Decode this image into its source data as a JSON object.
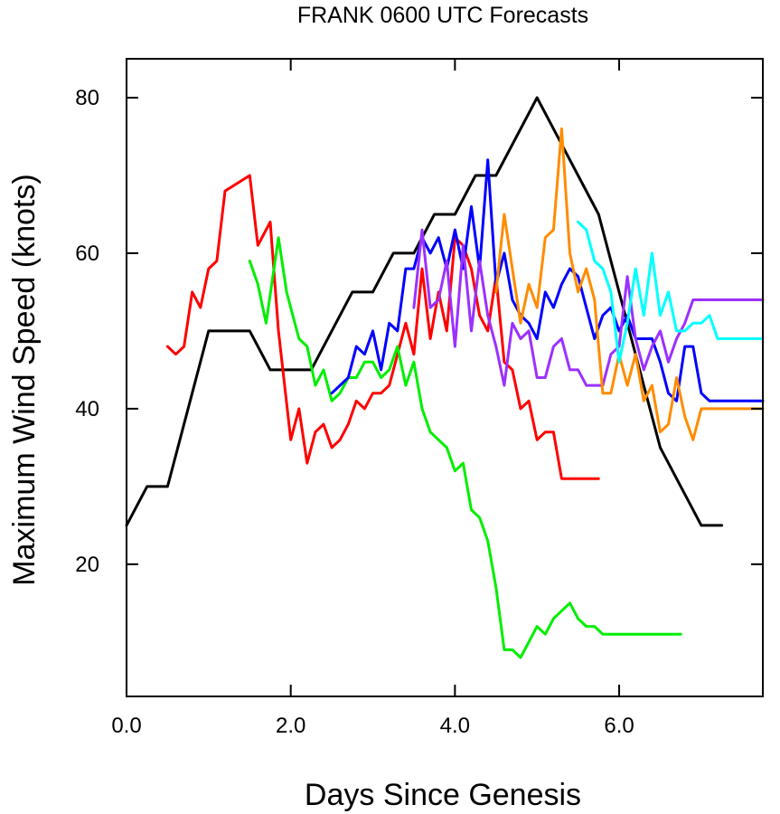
{
  "chart_data": {
    "type": "line",
    "title": "FRANK 0600 UTC Forecasts",
    "xlabel": "Days Since Genesis",
    "ylabel": "Maximum Wind Speed (knots)",
    "xlim": [
      0,
      7.75
    ],
    "ylim": [
      3,
      85
    ],
    "xticks": [
      0,
      2,
      4,
      6
    ],
    "xtick_labels": [
      "0.0",
      "2.0",
      "4.0",
      "6.0"
    ],
    "yticks": [
      20,
      40,
      60,
      80
    ],
    "ytick_labels": [
      "20",
      "40",
      "60",
      "80"
    ],
    "grid": false,
    "series": [
      {
        "color": "#000000",
        "x": [
          0,
          0.25,
          0.5,
          1.0,
          1.5,
          1.75,
          2.25,
          2.75,
          3.0,
          3.25,
          3.5,
          3.75,
          4.0,
          4.25,
          4.5,
          5.0,
          5.5,
          5.75,
          6.0,
          6.25,
          6.5,
          6.75,
          7.0,
          7.25
        ],
        "y": [
          25,
          30,
          30,
          50,
          50,
          45,
          45,
          55,
          55,
          60,
          60,
          65,
          65,
          70,
          70,
          80,
          70,
          65,
          55,
          45,
          35,
          30,
          25,
          25
        ]
      },
      {
        "color": "#ff0000",
        "x": [
          0.5,
          0.6,
          0.7,
          0.8,
          0.9,
          1.0,
          1.1,
          1.2,
          1.35,
          1.5,
          1.6,
          1.75,
          1.85,
          2.0,
          2.1,
          2.2,
          2.3,
          2.4,
          2.5,
          2.6,
          2.7,
          2.8,
          2.9,
          3.0,
          3.1,
          3.2,
          3.3,
          3.4,
          3.5,
          3.6,
          3.7,
          3.8,
          3.9,
          4.0,
          4.1,
          4.2,
          4.3,
          4.4,
          4.5,
          4.6,
          4.7,
          4.8,
          4.9,
          5.0,
          5.1,
          5.2,
          5.3,
          5.4,
          5.5,
          5.6,
          5.7,
          5.75
        ],
        "y": [
          48,
          47,
          48,
          55,
          53,
          58,
          59,
          68,
          69,
          70,
          61,
          64,
          50,
          36,
          40,
          33,
          37,
          38,
          35,
          36,
          38,
          41,
          40,
          42,
          42,
          43,
          47,
          51,
          47,
          58,
          49,
          55,
          50,
          62,
          61,
          58,
          52,
          50,
          57,
          46,
          45,
          40,
          41,
          36,
          37,
          37,
          31,
          31,
          31,
          31,
          31,
          31
        ]
      },
      {
        "color": "#00ee00",
        "x": [
          1.5,
          1.6,
          1.7,
          1.85,
          1.95,
          2.1,
          2.2,
          2.3,
          2.4,
          2.5,
          2.6,
          2.7,
          2.8,
          2.9,
          3.0,
          3.1,
          3.2,
          3.3,
          3.4,
          3.5,
          3.6,
          3.7,
          3.8,
          3.9,
          4.0,
          4.1,
          4.2,
          4.3,
          4.4,
          4.5,
          4.6,
          4.7,
          4.8,
          4.9,
          5.0,
          5.1,
          5.2,
          5.3,
          5.4,
          5.5,
          5.6,
          5.7,
          5.8,
          5.9,
          6.0,
          6.1,
          6.2,
          6.3,
          6.4,
          6.5,
          6.6,
          6.7,
          6.75
        ],
        "y": [
          59,
          56,
          51,
          62,
          55,
          49,
          48,
          43,
          45,
          41,
          42,
          44,
          44,
          46,
          46,
          44,
          45,
          48,
          43,
          46,
          40,
          37,
          36,
          35,
          32,
          33,
          27,
          26,
          23,
          17,
          9,
          9,
          8,
          10,
          12,
          11,
          13,
          14,
          15,
          13,
          12,
          12,
          11,
          11,
          11,
          11,
          11,
          11,
          11,
          11,
          11,
          11,
          11
        ]
      },
      {
        "color": "#0000ff",
        "x": [
          2.5,
          2.6,
          2.7,
          2.8,
          2.9,
          3.0,
          3.1,
          3.2,
          3.3,
          3.4,
          3.5,
          3.6,
          3.7,
          3.8,
          3.9,
          4.0,
          4.1,
          4.2,
          4.3,
          4.4,
          4.5,
          4.6,
          4.7,
          4.8,
          4.9,
          5.0,
          5.1,
          5.2,
          5.3,
          5.4,
          5.5,
          5.6,
          5.7,
          5.8,
          5.9,
          6.0,
          6.1,
          6.2,
          6.3,
          6.4,
          6.5,
          6.6,
          6.7,
          6.8,
          6.9,
          7.0,
          7.1,
          7.2,
          7.3,
          7.4,
          7.5,
          7.6,
          7.7,
          7.75
        ],
        "y": [
          42,
          43,
          44,
          48,
          47,
          50,
          45,
          51,
          50,
          58,
          58,
          62,
          60,
          62,
          58,
          63,
          58,
          66,
          58,
          72,
          56,
          60,
          54,
          52,
          51,
          49,
          55,
          53,
          56,
          58,
          57,
          53,
          49,
          52,
          53,
          50,
          52,
          49,
          49,
          49,
          46,
          42,
          41,
          48,
          48,
          42,
          41,
          41,
          41,
          41,
          41,
          41,
          41,
          41
        ]
      },
      {
        "color": "#9b30ff",
        "x": [
          3.5,
          3.6,
          3.7,
          3.8,
          3.9,
          4.0,
          4.1,
          4.2,
          4.3,
          4.4,
          4.5,
          4.6,
          4.7,
          4.8,
          4.9,
          5.0,
          5.1,
          5.2,
          5.3,
          5.4,
          5.5,
          5.6,
          5.7,
          5.8,
          5.9,
          6.0,
          6.1,
          6.2,
          6.3,
          6.4,
          6.5,
          6.6,
          6.7,
          6.8,
          6.9,
          7.0,
          7.1,
          7.2,
          7.3,
          7.4,
          7.5,
          7.6,
          7.7,
          7.75
        ],
        "y": [
          53,
          63,
          53,
          54,
          59,
          48,
          61,
          50,
          59,
          52,
          48,
          43,
          51,
          49,
          50,
          44,
          44,
          48,
          49,
          45,
          45,
          43,
          43,
          43,
          47,
          48,
          57,
          49,
          45,
          48,
          50,
          46,
          49,
          51,
          54,
          54,
          54,
          54,
          54,
          54,
          54,
          54,
          54,
          54
        ]
      },
      {
        "color": "#ff8c00",
        "x": [
          4.5,
          4.6,
          4.7,
          4.8,
          4.9,
          5.0,
          5.1,
          5.2,
          5.3,
          5.4,
          5.5,
          5.6,
          5.7,
          5.8,
          5.9,
          6.0,
          6.1,
          6.2,
          6.3,
          6.4,
          6.5,
          6.6,
          6.7,
          6.8,
          6.9,
          7.0,
          7.1,
          7.2,
          7.3,
          7.4,
          7.5,
          7.6,
          7.7,
          7.75
        ],
        "y": [
          55,
          65,
          58,
          51,
          56,
          53,
          62,
          63,
          76,
          60,
          55,
          58,
          54,
          42,
          42,
          47,
          43,
          47,
          41,
          43,
          37,
          38,
          44,
          39,
          36,
          40,
          40,
          40,
          40,
          40,
          40,
          40,
          40,
          40
        ]
      },
      {
        "color": "#00ffff",
        "x": [
          5.5,
          5.6,
          5.7,
          5.8,
          5.9,
          6.0,
          6.1,
          6.2,
          6.3,
          6.4,
          6.5,
          6.6,
          6.7,
          6.8,
          6.9,
          7.0,
          7.1,
          7.2,
          7.3,
          7.4,
          7.5,
          7.6,
          7.7,
          7.75
        ],
        "y": [
          64,
          63,
          59,
          58,
          55,
          46,
          51,
          58,
          52,
          60,
          52,
          55,
          50,
          50,
          51,
          51,
          52,
          49,
          49,
          49,
          49,
          49,
          49,
          49
        ]
      }
    ]
  }
}
